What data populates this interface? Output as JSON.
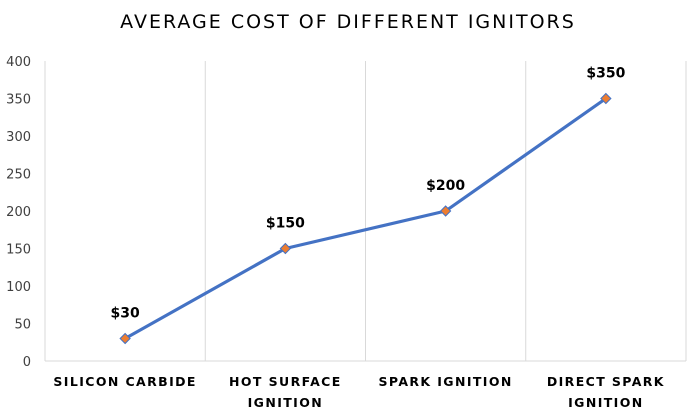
{
  "chart_data": {
    "type": "line",
    "title": "AVERAGE COST OF DIFFERENT IGNITORS",
    "categories": [
      [
        "SILICON CARBIDE"
      ],
      [
        "HOT SURFACE",
        "IGNITION"
      ],
      [
        "SPARK IGNITION"
      ],
      [
        "DIRECT SPARK",
        "IGNITION"
      ]
    ],
    "series": [
      {
        "values": [
          30,
          150,
          200,
          350
        ],
        "labels": [
          "$30",
          "$150",
          "$200",
          "$350"
        ]
      }
    ],
    "ylim": [
      0,
      400
    ],
    "yticks": [
      "0",
      "50",
      "100",
      "150",
      "200",
      "250",
      "300",
      "350",
      "400"
    ],
    "grid": "vertical",
    "line_color": "#4472C4",
    "marker_fill": "#ED7D31",
    "marker_stroke": "#4472C4"
  }
}
